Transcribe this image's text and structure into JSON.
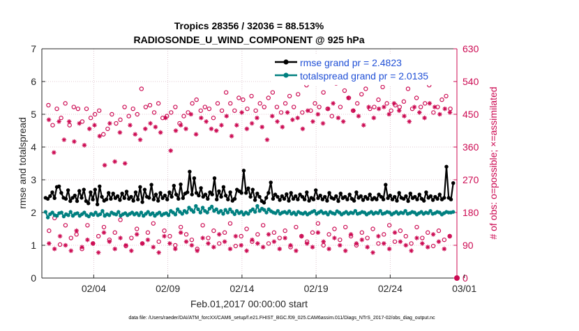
{
  "chart_data": {
    "type": "line",
    "title": [
      "Tropics 28356 / 32036 = 88.513%",
      "RADIOSONDE_U_WIND_COMPONENT @ 925 hPa"
    ],
    "xlabel": "Feb.01,2017 00:00:00 start",
    "ylabel_left": "rmse and totalspread",
    "ylabel_right": "# of obs: o=possible; ×=assimilated",
    "footer": "data file: /Users/raeder/DAI/ATM_forcXX/CAM6_setup/f.e21.FHIST_BGC.f09_025.CAM6assim.011/Diags_NTrS_2017-02/obs_diag_output.nc",
    "x_range": [
      0.5,
      28.5
    ],
    "x_ticks": [
      4,
      9,
      14,
      19,
      24,
      29
    ],
    "x_tick_labels": [
      "02/04",
      "02/09",
      "02/14",
      "02/19",
      "02/24",
      "03/01"
    ],
    "ylim_left": [
      0,
      7
    ],
    "y_ticks_left": [
      "0",
      "1",
      "2",
      "3",
      "4",
      "5",
      "6",
      "7"
    ],
    "ylim_right": [
      0,
      630
    ],
    "y_ticks_right": [
      "0",
      "90",
      "180",
      "270",
      "360",
      "450",
      "540",
      "630"
    ],
    "colors": {
      "rmse": "#000000",
      "spread": "#008080",
      "obs": "#cc0a52",
      "spread_label": "#1f4fd6"
    },
    "series": [
      {
        "name": "rmse grand pr = 2.4823",
        "color": "#000000",
        "values": [
          2.45,
          2.42,
          2.5,
          2.62,
          2.44,
          2.78,
          2.8,
          2.6,
          2.45,
          2.42,
          2.68,
          2.35,
          2.45,
          2.52,
          2.35,
          2.66,
          2.45,
          2.7,
          2.35,
          2.28,
          2.62,
          2.4,
          2.7,
          2.25,
          2.8,
          2.48,
          2.36,
          2.4,
          2.6,
          2.42,
          2.58,
          2.44,
          2.5,
          2.38,
          2.58,
          2.44,
          2.64,
          2.42,
          2.48,
          2.36,
          2.62,
          2.4,
          2.78,
          2.32,
          2.7,
          2.48,
          2.45,
          2.85,
          2.4,
          2.55,
          2.36,
          2.6,
          2.44,
          2.52,
          2.4,
          2.62,
          2.48,
          2.82,
          2.55,
          2.42,
          2.86,
          2.44,
          2.58,
          2.62,
          3.25,
          2.55,
          3.05,
          2.6,
          2.52,
          2.75,
          2.48,
          2.55,
          2.42,
          2.62,
          2.55,
          3.05,
          2.4,
          2.65,
          2.48,
          2.78,
          2.52,
          2.4,
          2.62,
          2.36,
          2.42,
          2.7,
          2.65,
          2.6,
          3.28,
          2.6,
          2.74,
          2.48,
          2.7,
          2.38,
          2.58,
          2.48,
          2.35,
          2.3,
          2.45,
          2.6,
          2.92,
          2.42,
          2.55,
          2.48,
          2.38,
          2.5,
          2.42,
          2.56,
          2.36,
          2.6,
          2.42,
          2.5,
          2.4,
          2.55,
          2.48,
          2.4,
          2.62,
          2.36,
          2.45,
          2.4,
          2.68,
          2.44,
          2.52,
          2.4,
          2.48,
          2.36,
          2.6,
          2.45,
          2.42,
          2.5,
          2.35,
          2.58,
          2.44,
          2.48,
          2.4,
          2.55,
          2.42,
          2.36,
          2.62,
          2.45,
          2.5,
          2.38,
          2.48,
          2.42,
          2.55,
          2.4,
          2.45,
          2.4,
          2.55,
          2.48,
          2.4,
          2.85,
          2.44,
          2.52,
          2.4,
          2.48,
          2.36,
          2.6,
          2.45,
          2.42,
          2.5,
          2.35,
          2.58,
          2.44,
          2.48,
          2.4,
          2.55,
          2.42,
          2.36,
          2.62,
          2.45,
          2.5,
          2.38,
          2.48,
          2.42,
          2.55,
          2.4,
          2.45,
          3.4,
          2.45,
          2.4,
          2.9
        ]
      },
      {
        "name": "totalspread grand pr = 2.0135",
        "color": "#008080",
        "values": [
          2.02,
          1.85,
          1.95,
          2.0,
          1.92,
          1.9,
          1.98,
          2.0,
          1.88,
          1.95,
          1.92,
          2.02,
          1.9,
          1.96,
          1.98,
          1.9,
          1.95,
          2.0,
          1.92,
          1.88,
          1.96,
          1.93,
          2.0,
          1.92,
          1.95,
          2.05,
          1.9,
          1.95,
          1.92,
          2.0,
          1.96,
          1.94,
          2.02,
          1.9,
          1.95,
          1.98,
          1.92,
          1.96,
          2.0,
          1.94,
          1.98,
          1.92,
          2.0,
          1.9,
          1.96,
          2.02,
          1.94,
          1.98,
          1.9,
          1.96,
          2.0,
          1.92,
          1.96,
          1.98,
          1.92,
          2.05,
          2.0,
          1.94,
          2.1,
          2.02,
          1.96,
          2.05,
          2.0,
          2.15,
          2.08,
          2.02,
          2.2,
          2.1,
          2.0,
          2.15,
          2.05,
          2.0,
          2.12,
          2.18,
          2.05,
          2.1,
          2.0,
          2.05,
          1.96,
          2.08,
          2.0,
          2.1,
          2.02,
          1.95,
          2.05,
          1.98,
          2.02,
          1.94,
          2.0,
          1.96,
          2.05,
          2.1,
          2.02,
          2.2,
          2.05,
          2.12,
          2.08,
          2.0,
          2.1,
          2.04,
          2.0,
          1.98,
          2.05,
          1.96,
          2.0,
          2.02,
          1.98,
          2.04,
          1.96,
          2.0,
          1.94,
          2.02,
          1.98,
          1.96,
          2.0,
          1.94,
          1.98,
          2.02,
          2.05,
          1.96,
          2.0,
          2.04,
          1.98,
          2.0,
          1.94,
          2.02,
          1.98,
          1.96,
          2.04,
          2.0,
          1.94,
          1.98,
          2.02,
          1.96,
          2.0,
          1.98,
          2.05,
          1.96,
          1.98,
          2.02,
          2.0,
          1.94,
          1.98,
          2.02,
          1.96,
          2.0,
          1.98,
          2.05,
          1.96,
          1.98,
          2.02,
          2.0,
          1.94,
          1.98,
          2.02,
          1.96,
          2.0,
          1.98,
          2.05,
          1.96,
          1.98,
          2.02,
          2.0,
          1.94,
          1.98,
          2.02,
          1.96,
          2.0,
          1.98,
          2.05,
          1.96,
          1.98,
          2.02,
          2.0,
          1.94,
          1.98,
          2.02,
          2.0,
          2.0,
          2.02
        ]
      }
    ],
    "obs_possible_hi": [
      475,
      420,
      465,
      440,
      480,
      420,
      470,
      465,
      430,
      465,
      440,
      450,
      460,
      395,
      410,
      450,
      425,
      435,
      470,
      445,
      465,
      450,
      520,
      470,
      475,
      455,
      480,
      440,
      445,
      455,
      470,
      425,
      445,
      455,
      480,
      490,
      460,
      470,
      465,
      440,
      480,
      460,
      510,
      480,
      460,
      495,
      490,
      465,
      500,
      460,
      480,
      470,
      495,
      510,
      470,
      455,
      480,
      500,
      470,
      505,
      455,
      530,
      460,
      480,
      470,
      510,
      465,
      445,
      535,
      470,
      515,
      495,
      460,
      480,
      505,
      520,
      465,
      470,
      490,
      525,
      480,
      460,
      475,
      470,
      485,
      520,
      465,
      495,
      470,
      480,
      530,
      455,
      470,
      490,
      500,
      465
    ],
    "obs_assim_hi": [
      435,
      345,
      430,
      380,
      430,
      375,
      425,
      365,
      410,
      420,
      390,
      310,
      425,
      320,
      400,
      315,
      420,
      395,
      380,
      410,
      425,
      415,
      400,
      440,
      350,
      405,
      420,
      410,
      450,
      395,
      440,
      430,
      410,
      405,
      420,
      445,
      390,
      420,
      455,
      410,
      425,
      440,
      415,
      380,
      445,
      430,
      415,
      455,
      435,
      440,
      410,
      460,
      430,
      450,
      425,
      465,
      480,
      440,
      430,
      495,
      460,
      445,
      420,
      470,
      440,
      465,
      470,
      450,
      480,
      460,
      445,
      430,
      470,
      455,
      440,
      480,
      470,
      450,
      465,
      455
    ],
    "obs_possible_lo": [
      130,
      165,
      92,
      145,
      110,
      120,
      80,
      145,
      95,
      115,
      140,
      105,
      125,
      160,
      88,
      110,
      135,
      95,
      125,
      150,
      100,
      130,
      115,
      90,
      140,
      120,
      105,
      80,
      145,
      110,
      130,
      95,
      125,
      150,
      88,
      115,
      135,
      100,
      120,
      145,
      95,
      125,
      110,
      130,
      85,
      140,
      115,
      100,
      125,
      150,
      90,
      120,
      135,
      105,
      140,
      115,
      90,
      125,
      110,
      135,
      95,
      120,
      145,
      100,
      130,
      115,
      95,
      140,
      110,
      125,
      88,
      130,
      105,
      115
    ],
    "obs_assim_lo": [
      95,
      80,
      115,
      90,
      75,
      130,
      85,
      105,
      95,
      70,
      125,
      100,
      80,
      110,
      90,
      75,
      120,
      95,
      105,
      85,
      70,
      115,
      95,
      80,
      125,
      100,
      90,
      75,
      110,
      95,
      85,
      120,
      100,
      80,
      115,
      90,
      75,
      105,
      95,
      85,
      120,
      100,
      80,
      110,
      90,
      75,
      115,
      95,
      85,
      125,
      100,
      80,
      110,
      90,
      75,
      120,
      95,
      105,
      85,
      70,
      115,
      95,
      80,
      125,
      100,
      90,
      75,
      110,
      95,
      85,
      120,
      100,
      80,
      115
    ]
  }
}
